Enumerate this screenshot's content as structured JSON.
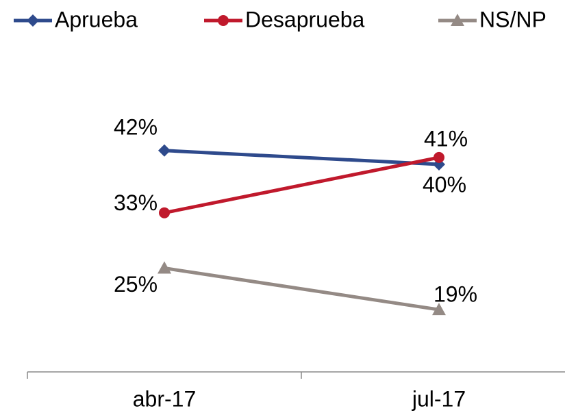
{
  "chart_data": {
    "type": "line",
    "categories": [
      "abr-17",
      "jul-17"
    ],
    "series": [
      {
        "name": "Aprueba",
        "color": "#2e4a8c",
        "marker": "diamond",
        "values": [
          42,
          40
        ],
        "value_labels": [
          "42%",
          "40%"
        ]
      },
      {
        "name": "Desaprueba",
        "color": "#c0192c",
        "marker": "circle",
        "values": [
          33,
          41
        ],
        "value_labels": [
          "33%",
          "41%"
        ]
      },
      {
        "name": "NS/NP",
        "color": "#948a85",
        "marker": "triangle",
        "values": [
          25,
          19
        ],
        "value_labels": [
          "25%",
          "19%"
        ]
      }
    ],
    "ylim": [
      10,
      50
    ],
    "legend": "top"
  }
}
